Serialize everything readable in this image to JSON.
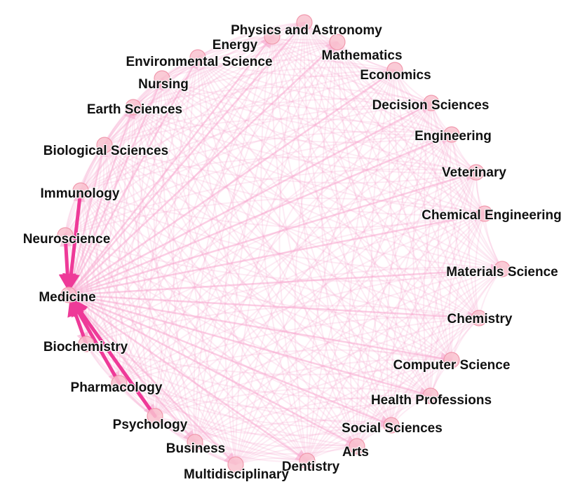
{
  "graph": {
    "nodes": [
      {
        "id": "physics",
        "label": "Physics and Astronomy"
      },
      {
        "id": "energy",
        "label": "Energy"
      },
      {
        "id": "mathematics",
        "label": "Mathematics"
      },
      {
        "id": "environmental",
        "label": "Environmental Science"
      },
      {
        "id": "economics",
        "label": "Economics"
      },
      {
        "id": "nursing",
        "label": "Nursing"
      },
      {
        "id": "decision",
        "label": "Decision Sciences"
      },
      {
        "id": "earth",
        "label": "Earth Sciences"
      },
      {
        "id": "engineering",
        "label": "Engineering"
      },
      {
        "id": "biological",
        "label": "Biological Sciences"
      },
      {
        "id": "veterinary",
        "label": "Veterinary"
      },
      {
        "id": "immunology",
        "label": "Immunology"
      },
      {
        "id": "chemeng",
        "label": "Chemical Engineering"
      },
      {
        "id": "neuroscience",
        "label": "Neuroscience"
      },
      {
        "id": "materials",
        "label": "Materials Science"
      },
      {
        "id": "medicine",
        "label": "Medicine"
      },
      {
        "id": "chemistry",
        "label": "Chemistry"
      },
      {
        "id": "biochemistry",
        "label": "Biochemistry"
      },
      {
        "id": "computer",
        "label": "Computer Science"
      },
      {
        "id": "pharmacology",
        "label": "Pharmacology"
      },
      {
        "id": "health",
        "label": "Health Professions"
      },
      {
        "id": "psychology",
        "label": "Psychology"
      },
      {
        "id": "social",
        "label": "Social Sciences"
      },
      {
        "id": "business",
        "label": "Business"
      },
      {
        "id": "arts",
        "label": "Arts"
      },
      {
        "id": "dentistry",
        "label": "Dentistry"
      },
      {
        "id": "multidisciplinary",
        "label": "Multidisciplinary"
      }
    ],
    "highlighted_edges": [
      {
        "from": "immunology",
        "to": "medicine"
      },
      {
        "from": "neuroscience",
        "to": "medicine"
      },
      {
        "from": "biochemistry",
        "to": "medicine"
      },
      {
        "from": "pharmacology",
        "to": "medicine"
      },
      {
        "from": "psychology",
        "to": "medicine"
      }
    ],
    "colors": {
      "edge": "#f7a6cd",
      "highlight": "#ee3a98",
      "node_fill": "#f9c2cf",
      "node_stroke": "#f19aae",
      "label": "#111111"
    }
  }
}
